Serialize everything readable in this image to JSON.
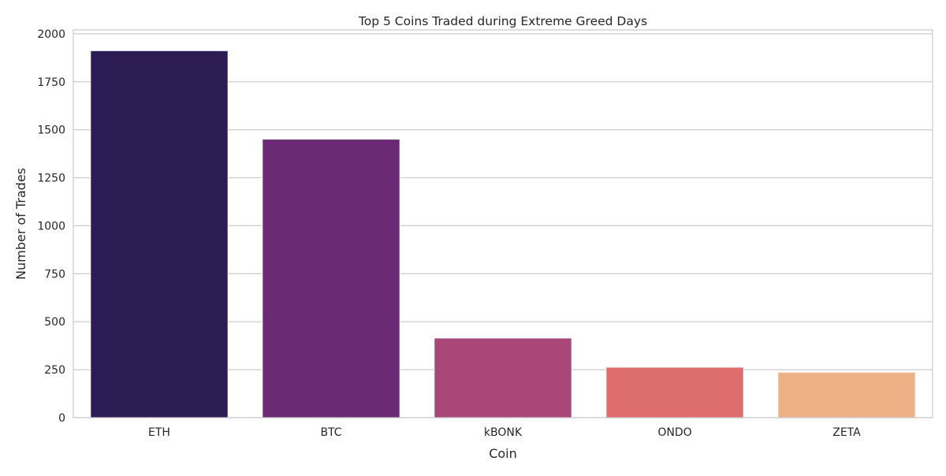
{
  "chart_data": {
    "type": "bar",
    "title": "Top 5 Coins Traded during Extreme Greed Days",
    "xlabel": "Coin",
    "ylabel": "Number of Trades",
    "categories": [
      "ETH",
      "BTC",
      "kBONK",
      "ONDO",
      "ZETA"
    ],
    "values": [
      1912,
      1451,
      415,
      263,
      237
    ],
    "colors": [
      "#2d1b54",
      "#6a2b74",
      "#a84778",
      "#de6e6d",
      "#eeb185"
    ],
    "ylim": [
      0,
      2020
    ],
    "yticks": [
      0,
      250,
      500,
      750,
      1000,
      1250,
      1500,
      1750,
      2000
    ],
    "grid": true,
    "legend": "none"
  }
}
